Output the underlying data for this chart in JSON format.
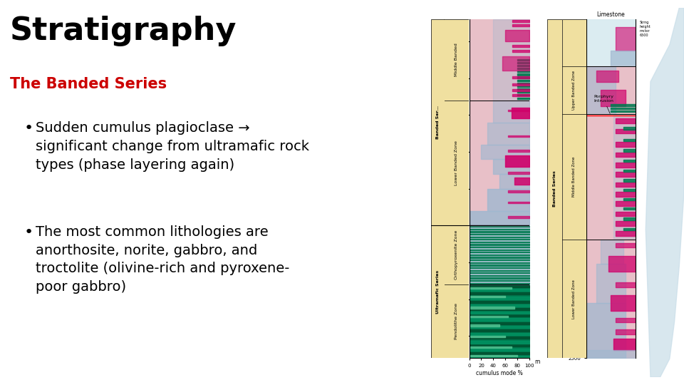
{
  "title": "Stratigraphy",
  "title_fontsize": 32,
  "subtitle": "The Banded Series",
  "subtitle_color": "#cc0000",
  "subtitle_fontsize": 15,
  "bullet1": "Sudden cumulus plagioclase →\nsignificant change from ultramafic rock\ntypes (phase layering again)",
  "bullet2": "The most common lithologies are\nanorthosite, norite, gabbro, and\ntroctolite (olivine-rich and pyroxene-\npoor gabbro)",
  "bullet_fontsize": 14,
  "background_color": "#ffffff",
  "text_color": "#000000",
  "label_bg": "#f0e0a0",
  "pink": "#e8c0c8",
  "blue": "#a0b8d0",
  "magenta": "#d0006a",
  "green": "#007a50",
  "light_blue_deco": "#c8dde8"
}
